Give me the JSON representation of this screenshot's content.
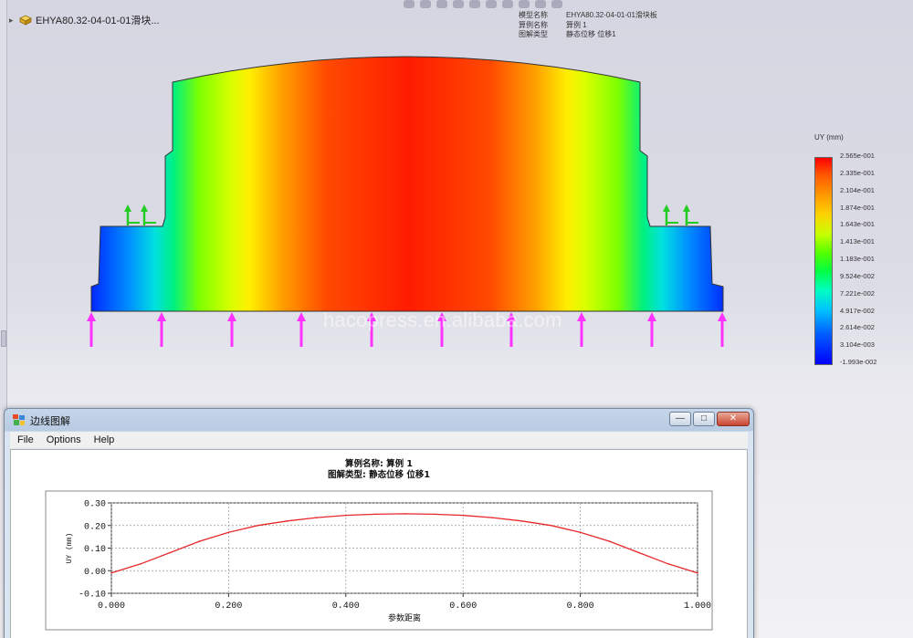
{
  "viewport": {
    "tree_item": "EHYA80.32-04-01-01滑块...",
    "model_info": [
      {
        "key": "模型名称",
        "value": "EHYA80.32-04-01-01滑块板"
      },
      {
        "key": "算例名称",
        "value": "算例 1"
      },
      {
        "key": "图解类型",
        "value": "静态位移  位移1"
      }
    ],
    "watermark": "hacopress.en.alibaba.com",
    "legend": {
      "title": "UY (mm)",
      "labels": [
        "2.565e-001",
        "2.335e-001",
        "2.104e-001",
        "1.874e-001",
        "1.643e-001",
        "1.413e-001",
        "1.183e-001",
        "9.524e-002",
        "7.221e-002",
        "4.917e-002",
        "2.614e-002",
        "3.104e-003",
        "-1.993e-002"
      ],
      "colors": {
        "max": "#ff0000",
        "mid": "#55ff00",
        "min": "#0000ff"
      }
    },
    "load_arrow_color": "#ff33ff",
    "fixture_arrow_color": "#22cc22"
  },
  "plot_window": {
    "title": "边线图解",
    "menu": [
      "File",
      "Options",
      "Help"
    ],
    "buttons": {
      "minimize": "—",
      "maximize": "□",
      "close": "✕"
    },
    "head_line1": "算例名称:  算例 1",
    "head_line2": "图解类型:  静态位移  位移1"
  },
  "chart_data": {
    "type": "line",
    "title": "",
    "xlabel": "参数距离",
    "ylabel": "UY (mm)",
    "xlim": [
      0.0,
      1.0
    ],
    "ylim": [
      -0.1,
      0.3
    ],
    "x_ticks": [
      "0.000",
      "0.200",
      "0.400",
      "0.600",
      "0.800",
      "1.000"
    ],
    "y_ticks": [
      "0.30",
      "0.20",
      "0.10",
      "0.00",
      "-0.10"
    ],
    "grid": true,
    "line_color": "#e8282b",
    "series": [
      {
        "x": [
          0.0,
          0.05,
          0.1,
          0.15,
          0.2,
          0.25,
          0.3,
          0.35,
          0.4,
          0.45,
          0.5,
          0.55,
          0.6,
          0.65,
          0.7,
          0.75,
          0.8,
          0.85,
          0.9,
          0.95,
          1.0
        ],
        "values": [
          -0.01,
          0.03,
          0.08,
          0.13,
          0.17,
          0.2,
          0.22,
          0.235,
          0.245,
          0.25,
          0.252,
          0.25,
          0.245,
          0.235,
          0.22,
          0.2,
          0.17,
          0.13,
          0.08,
          0.03,
          -0.01
        ]
      }
    ]
  }
}
